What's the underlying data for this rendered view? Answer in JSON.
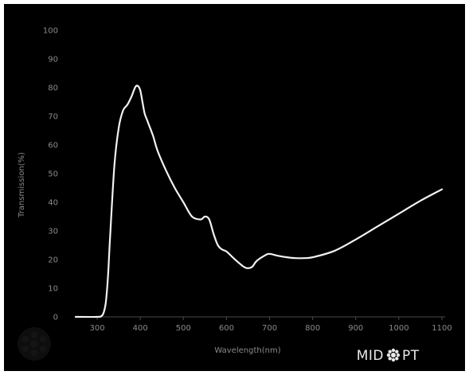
{
  "chart_data": {
    "type": "line",
    "title": "",
    "xlabel": "Wavelength(nm)",
    "ylabel": "Transmission(%)",
    "xlim": [
      250,
      1100
    ],
    "ylim": [
      0,
      100
    ],
    "x_ticks": [
      "300",
      "400",
      "500",
      "600",
      "700",
      "800",
      "900",
      "1000",
      "1100"
    ],
    "y_ticks": [
      "0",
      "10",
      "20",
      "30",
      "40",
      "50",
      "60",
      "70",
      "80",
      "90",
      "100"
    ],
    "grid": false,
    "series": [
      {
        "color": "#f2f2f2",
        "x": [
          250,
          300,
          310,
          315,
          320,
          325,
          330,
          340,
          350,
          360,
          370,
          380,
          385,
          390,
          395,
          400,
          405,
          410,
          415,
          420,
          430,
          440,
          460,
          480,
          500,
          520,
          540,
          550,
          560,
          570,
          580,
          590,
          600,
          620,
          640,
          650,
          660,
          670,
          690,
          700,
          720,
          740,
          760,
          780,
          800,
          850,
          900,
          950,
          1000,
          1050,
          1100
        ],
        "y": [
          0,
          0,
          0.3,
          1.5,
          5,
          14,
          28,
          53,
          66,
          72,
          74,
          77,
          79,
          80.5,
          80.5,
          79,
          75,
          71,
          69,
          67,
          63,
          58,
          51,
          45,
          40,
          35,
          34,
          35,
          34,
          29,
          25,
          23.5,
          22.8,
          20,
          17.5,
          17,
          17.5,
          19.5,
          21.5,
          22,
          21.3,
          20.8,
          20.5,
          20.5,
          20.8,
          23,
          27,
          31.5,
          36,
          40.5,
          44.5
        ]
      }
    ]
  },
  "logo": {
    "text_left": "MID",
    "text_right": "PT"
  }
}
